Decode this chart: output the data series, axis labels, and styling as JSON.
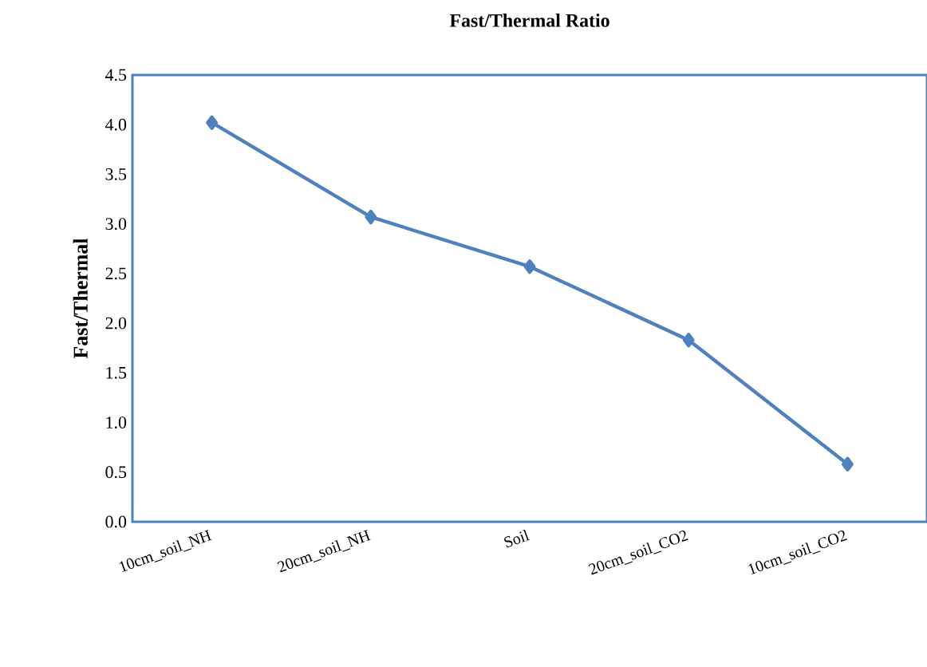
{
  "chart_data": {
    "type": "line",
    "title": "Fast/Thermal Ratio",
    "ylabel": "Fast/Thermal",
    "categories": [
      "10cm_soil_NH",
      "20cm_soil_NH",
      "Soil",
      "20cm_soil_CO2",
      "10cm_soil_CO2"
    ],
    "series": [
      {
        "color": "#4f81bd",
        "values": [
          4.02,
          3.07,
          2.57,
          1.83,
          0.58
        ]
      }
    ],
    "ylim": [
      0,
      4.5
    ],
    "yticks": [
      {
        "value": 0,
        "label": "0.0"
      },
      {
        "value": 0.5,
        "label": "0.5"
      },
      {
        "value": 1,
        "label": "1.0"
      },
      {
        "value": 1.5,
        "label": "1.5"
      },
      {
        "value": 2,
        "label": "2.0"
      },
      {
        "value": 2.5,
        "label": "2.5"
      },
      {
        "value": 3,
        "label": "3.0"
      },
      {
        "value": 3.5,
        "label": "3.5"
      },
      {
        "value": 4,
        "label": "4.0"
      },
      {
        "value": 4.5,
        "label": "4.5"
      }
    ],
    "marker": "diamond",
    "line_style": "solid"
  }
}
